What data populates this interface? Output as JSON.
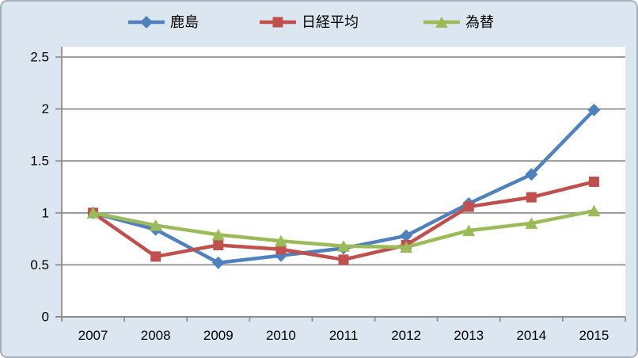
{
  "chart_data": {
    "type": "line",
    "categories": [
      "2007",
      "2008",
      "2009",
      "2010",
      "2011",
      "2012",
      "2013",
      "2014",
      "2015"
    ],
    "series": [
      {
        "name": "鹿島",
        "color": "#4f81bd",
        "marker": "diamond",
        "values": [
          1.0,
          0.84,
          0.52,
          0.59,
          0.66,
          0.78,
          1.09,
          1.37,
          1.99
        ]
      },
      {
        "name": "日経平均",
        "color": "#c0504d",
        "marker": "square",
        "values": [
          1.0,
          0.58,
          0.69,
          0.65,
          0.55,
          0.69,
          1.06,
          1.15,
          1.3
        ]
      },
      {
        "name": "為替",
        "color": "#9bbb59",
        "marker": "triangle",
        "values": [
          1.0,
          0.88,
          0.79,
          0.73,
          0.68,
          0.67,
          0.83,
          0.9,
          1.02
        ]
      }
    ],
    "ylim": [
      0,
      2.5
    ],
    "ytick_step": 0.5,
    "ytick_labels": [
      "0",
      "0.5",
      "1",
      "1.5",
      "2",
      "2.5"
    ],
    "grid": true,
    "legend_position": "top",
    "colors": {
      "background": "#dce6f1",
      "plot_background": "#ffffff",
      "gridline": "#8e8e8e",
      "axis": "#8e8e8e",
      "text": "#000000",
      "border": "#a6b0bd"
    }
  }
}
